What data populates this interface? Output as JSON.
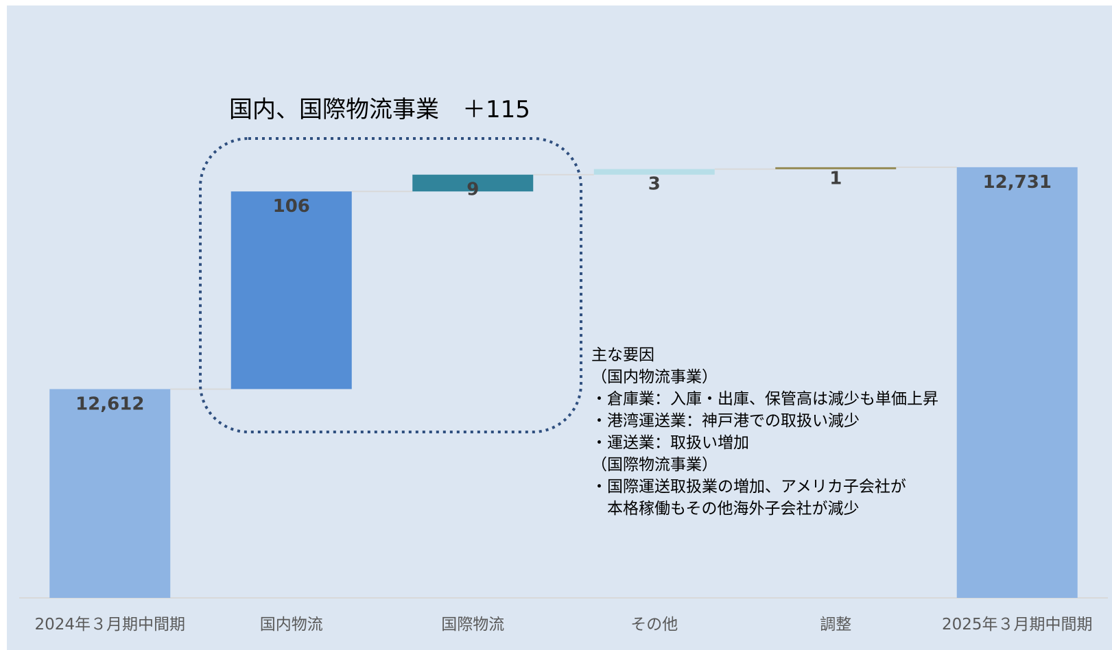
{
  "chart_data": {
    "type": "waterfall",
    "categories": [
      "2024年３月期中間期",
      "国内物流",
      "国際物流",
      "その他",
      "調整",
      "2025年３月期中間期"
    ],
    "values": [
      12612,
      106,
      9,
      3,
      1,
      12731
    ],
    "measure": [
      "total",
      "increase",
      "increase",
      "increase",
      "increase",
      "total"
    ],
    "data_labels": [
      "12,612",
      "106",
      "9",
      "3",
      "1",
      "12,731"
    ],
    "colors": [
      "#8eb4e3",
      "#558ed5",
      "#31849b",
      "#b7dee8",
      "#948a54",
      "#8eb4e3"
    ],
    "ylim": [
      12500,
      12760
    ],
    "xlabel": "",
    "ylabel": "",
    "grid": false,
    "legend": "none"
  },
  "callout": {
    "title": "国内、国際物流事業　＋115"
  },
  "notes": {
    "lines": [
      "主な要因",
      "（国内物流事業）",
      "・倉庫業：入庫・出庫、保管高は減少も単価上昇",
      "・港湾運送業：神戸港での取扱い減少",
      "・運送業：取扱い増加",
      "（国際物流事業）",
      "・国際運送取扱業の増加、アメリカ子会社が",
      "　本格稼働もその他海外子会社が減少"
    ]
  },
  "colors": {
    "background": "#dce6f2",
    "callout_border": "#2f4f7f",
    "connector": "#d9d9d9",
    "baseline": "#d9d9d9"
  }
}
